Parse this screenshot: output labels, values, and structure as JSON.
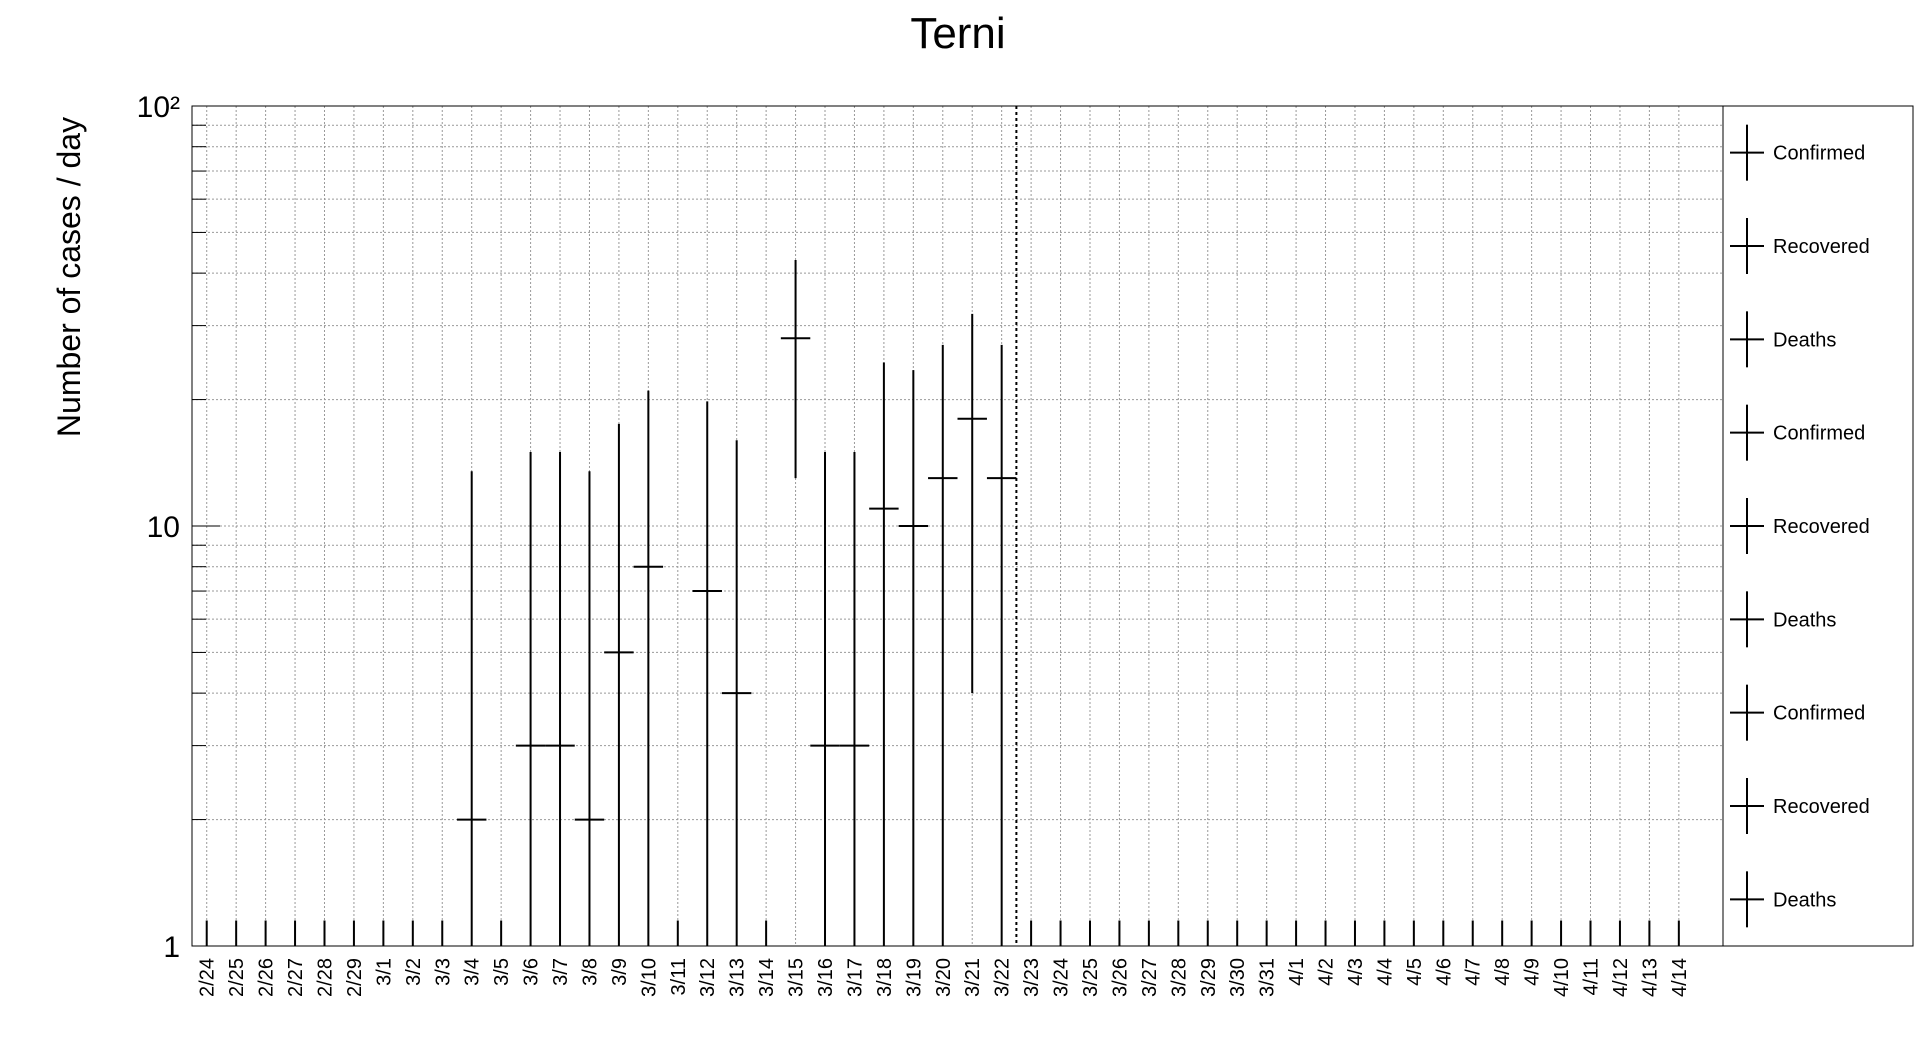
{
  "chart_data": {
    "type": "errorbar",
    "title": "Terni",
    "y_label": "Number of cases / day",
    "categories": [
      "2/24",
      "2/25",
      "2/26",
      "2/27",
      "2/28",
      "2/29",
      "3/1",
      "3/2",
      "3/3",
      "3/4",
      "3/5",
      "3/6",
      "3/7",
      "3/8",
      "3/9",
      "3/10",
      "3/11",
      "3/12",
      "3/13",
      "3/14",
      "3/15",
      "3/16",
      "3/17",
      "3/18",
      "3/19",
      "3/20",
      "3/21",
      "3/22",
      "3/23",
      "3/24",
      "3/25",
      "3/26",
      "3/27",
      "3/28",
      "3/29",
      "3/30",
      "3/31",
      "4/1",
      "4/2",
      "4/3",
      "4/4",
      "4/5",
      "4/6",
      "4/7",
      "4/8",
      "4/9",
      "4/10",
      "4/11",
      "4/12",
      "4/13",
      "4/14"
    ],
    "values": [
      0,
      0,
      0,
      0,
      0,
      0,
      0,
      0,
      0,
      2,
      0,
      3,
      3,
      2,
      5,
      8,
      0,
      7,
      4,
      0,
      28,
      3,
      3,
      11,
      10,
      13,
      18,
      13,
      0,
      0,
      0,
      0,
      0,
      0,
      0,
      0,
      0,
      0,
      0,
      0,
      0,
      0,
      0,
      0,
      0,
      0,
      0,
      0,
      0,
      0,
      0
    ],
    "errors": [
      1.15,
      1.15,
      1.15,
      1.15,
      1.15,
      1.15,
      1.15,
      1.15,
      1.15,
      11.5,
      1.15,
      12,
      12,
      11.5,
      12.5,
      13,
      1.15,
      12.8,
      12,
      1.15,
      15,
      12,
      12,
      13.5,
      13.5,
      14,
      14,
      14,
      1.15,
      1.15,
      1.15,
      1.15,
      1.15,
      1.15,
      1.15,
      1.15,
      1.15,
      1.15,
      1.15,
      1.15,
      1.15,
      1.15,
      1.15,
      1.15,
      1.15,
      1.15,
      1.15,
      1.15,
      1.15,
      1.15,
      1.15
    ],
    "color": "#000000",
    "log_y": true,
    "grid": true,
    "ylim": [
      1,
      100
    ],
    "yticks": [
      1,
      10,
      {
        "value": 100,
        "label": "10²"
      }
    ],
    "y_minor_ticks": [
      2,
      3,
      4,
      5,
      6,
      7,
      8,
      9,
      20,
      30,
      40,
      50,
      60,
      70,
      80,
      90
    ],
    "legend": [
      "Confirmed",
      "Recovered",
      "Deaths",
      "Confirmed",
      "Recovered",
      "Deaths",
      "Confirmed",
      "Recovered",
      "Deaths"
    ],
    "legend_position": "right"
  }
}
